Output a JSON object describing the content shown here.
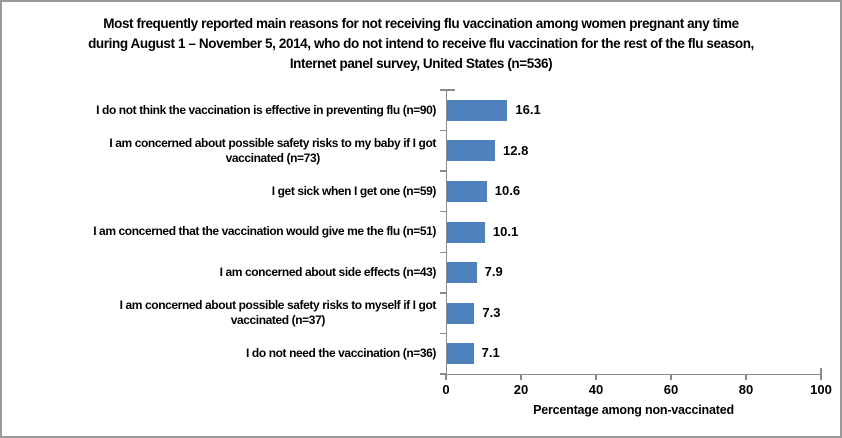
{
  "chart_data": {
    "type": "bar",
    "orientation": "horizontal",
    "title": "Most frequently reported main reasons for not receiving flu vaccination among women pregnant any time\nduring August 1 – November 5, 2014, who do not intend to receive flu vaccination for the rest of the flu season,\nInternet panel survey, United States (n=536)",
    "categories": [
      "I do not think the vaccination is effective in preventing flu (n=90)",
      "I am concerned about possible safety risks to my baby if I got\nvaccinated (n=73)",
      "I get sick when I get one (n=59)",
      "I am concerned that the vaccination would give me the flu (n=51)",
      "I am concerned about side effects (n=43)",
      "I am concerned about possible safety risks to myself if I got\nvaccinated (n=37)",
      "I do not need the vaccination (n=36)"
    ],
    "values": [
      16.1,
      12.8,
      10.6,
      10.1,
      7.9,
      7.3,
      7.1
    ],
    "value_labels": [
      "16.1",
      "12.8",
      "10.6",
      "10.1",
      "7.9",
      "7.3",
      "7.1"
    ],
    "xlabel": "Percentage among non-vaccinated",
    "xlim": [
      0,
      100
    ],
    "xticks": [
      0,
      20,
      40,
      60,
      80,
      100
    ],
    "grid": false,
    "legend": "none",
    "colors": {
      "bar": "#4F81BD",
      "axis": "#8A8A8A",
      "text": "#000000",
      "figure_border": "#9A9A9A",
      "background": "#FFFFFF"
    }
  }
}
